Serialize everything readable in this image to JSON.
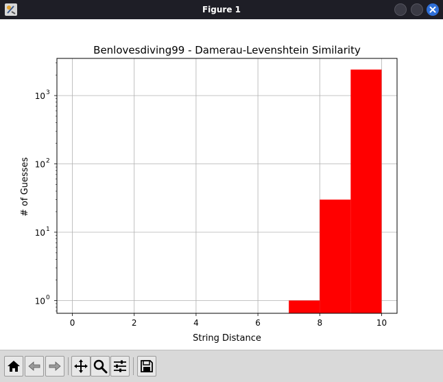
{
  "window": {
    "title": "Figure 1"
  },
  "toolbar": {
    "buttons": [
      {
        "name": "home-button",
        "icon": "home-icon"
      },
      {
        "name": "back-button",
        "icon": "arrow-left-icon"
      },
      {
        "name": "forward-button",
        "icon": "arrow-right-icon"
      },
      {
        "name": "pan-button",
        "icon": "move-arrows-icon"
      },
      {
        "name": "zoom-button",
        "icon": "magnifier-icon"
      },
      {
        "name": "configure-subplots-button",
        "icon": "sliders-icon"
      },
      {
        "name": "save-button",
        "icon": "floppy-disk-icon"
      }
    ]
  },
  "chart_data": {
    "type": "bar",
    "title": "Benlovesdiving99 - Damerau-Levenshtein Similarity",
    "xlabel": "String Distance",
    "ylabel": "# of Guesses",
    "bins": [
      {
        "x0": 7,
        "x1": 8,
        "count": 1
      },
      {
        "x0": 8,
        "x1": 9,
        "count": 30
      },
      {
        "x0": 9,
        "x1": 10,
        "count": 2400
      }
    ],
    "xlim": [
      -0.5,
      10.5
    ],
    "ylim": [
      0.65,
      3500
    ],
    "yscale": "log",
    "xticks": [
      "0",
      "2",
      "4",
      "6",
      "8",
      "10"
    ],
    "yticks": [
      {
        "base": "10",
        "exp": "0"
      },
      {
        "base": "10",
        "exp": "1"
      },
      {
        "base": "10",
        "exp": "2"
      },
      {
        "base": "10",
        "exp": "3"
      }
    ],
    "bar_color": "#ff0000",
    "grid": true
  }
}
